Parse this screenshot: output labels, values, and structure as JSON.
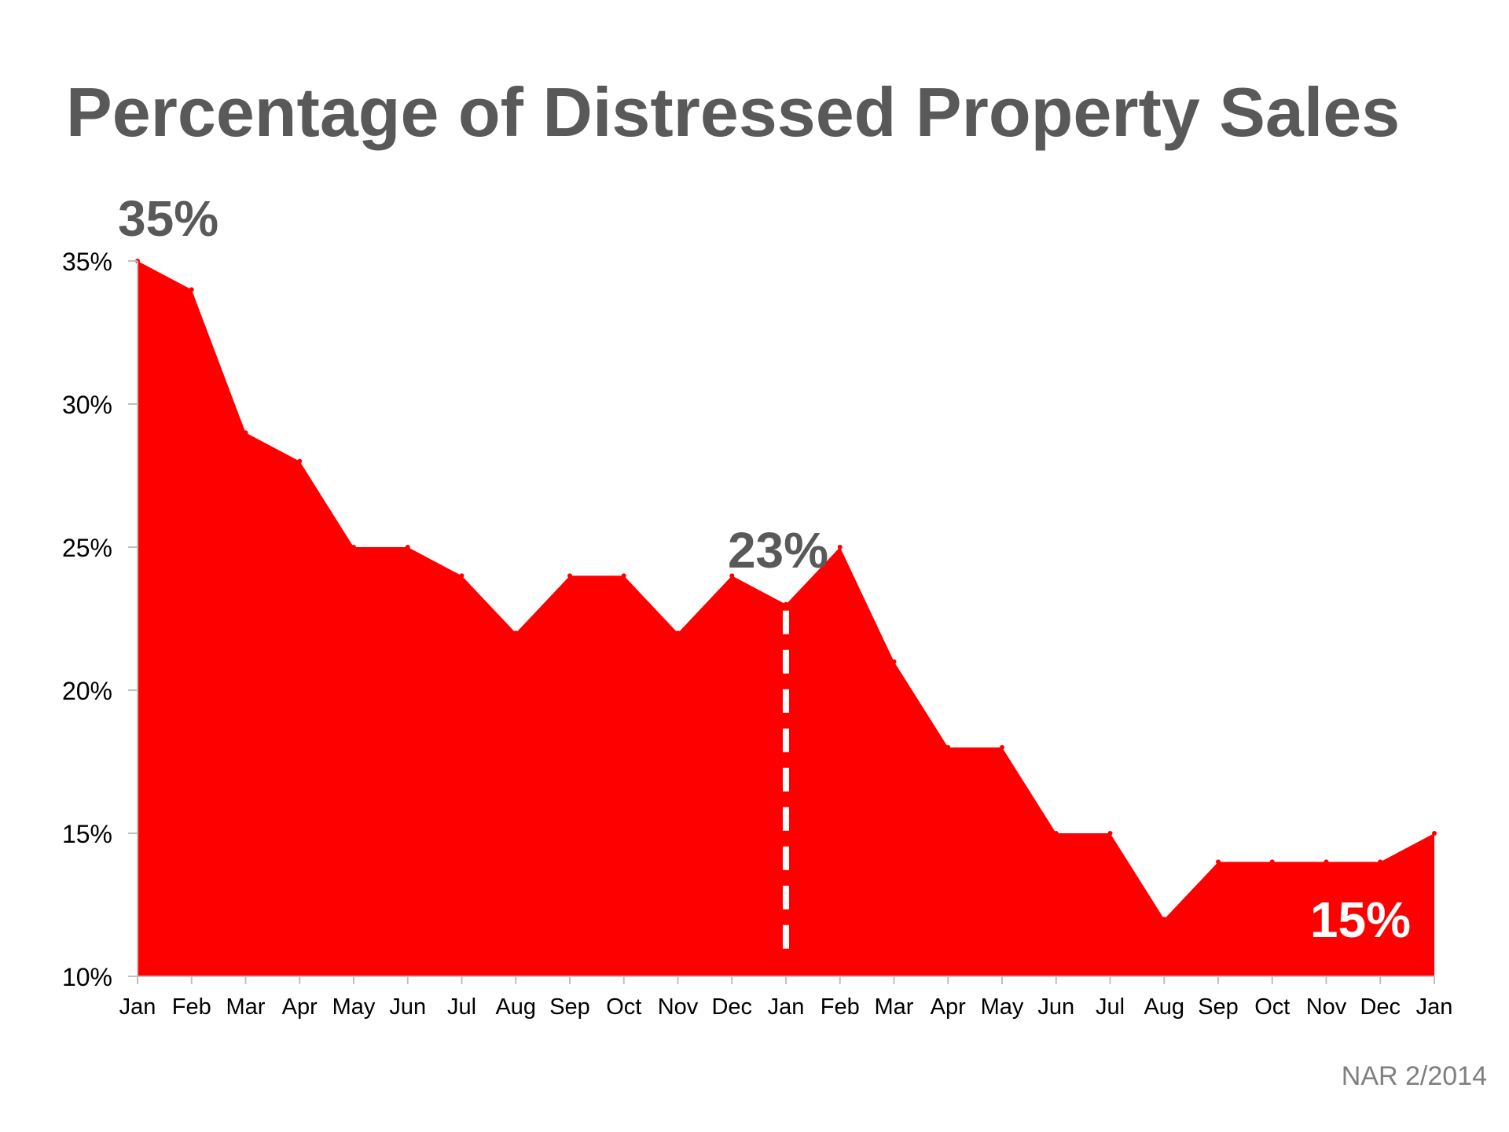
{
  "chart_data": {
    "type": "area",
    "title": "Percentage of Distressed Property Sales",
    "categories": [
      "Jan",
      "Feb",
      "Mar",
      "Apr",
      "May",
      "Jun",
      "Jul",
      "Aug",
      "Sep",
      "Oct",
      "Nov",
      "Dec",
      "Jan",
      "Feb",
      "Mar",
      "Apr",
      "May",
      "Jun",
      "Jul",
      "Aug",
      "Sep",
      "Oct",
      "Nov",
      "Dec",
      "Jan"
    ],
    "values": [
      35,
      34,
      29,
      28,
      25,
      25,
      24,
      22,
      24,
      24,
      22,
      24,
      23,
      25,
      21,
      18,
      18,
      15,
      15,
      12,
      14,
      14,
      14,
      14,
      15
    ],
    "ylim": [
      10,
      35
    ],
    "yticks": [
      10,
      15,
      20,
      25,
      30,
      35
    ],
    "ytick_labels": [
      "10%",
      "15%",
      "20%",
      "25%",
      "30%",
      "35%"
    ],
    "grid": false,
    "colors": {
      "fill": "#ff0000",
      "axis": "#bfbfbf",
      "text": "#595959",
      "marker_line": "#ffffff",
      "highlight_text": "#ffffff"
    },
    "annotations": [
      {
        "index": 0,
        "text": "35%",
        "color": "#595959"
      },
      {
        "index": 12,
        "text": "23%",
        "color": "#595959",
        "dashed_marker": true
      },
      {
        "index": 24,
        "text": "15%",
        "color": "#ffffff"
      }
    ]
  },
  "source": "NAR 2/2014"
}
